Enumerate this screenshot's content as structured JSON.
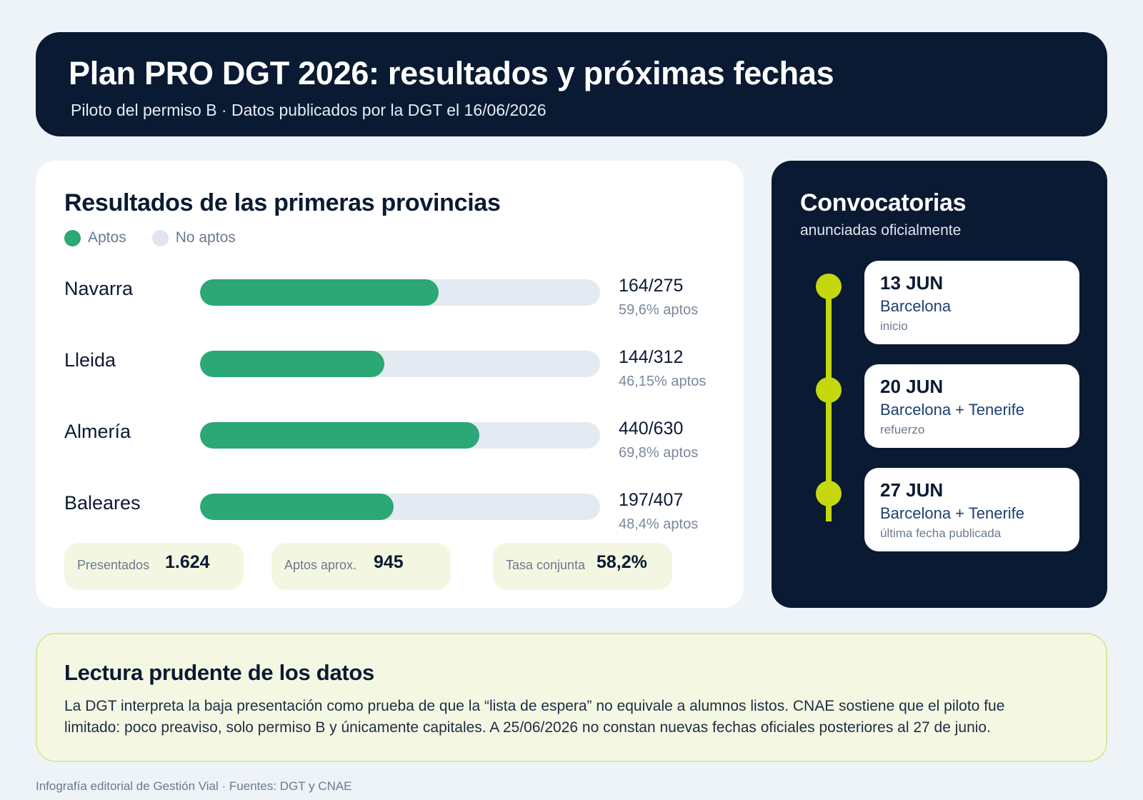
{
  "header": {
    "title": "Plan PRO DGT 2026: resultados y próximas fechas",
    "subtitle": "Piloto del permiso B · Datos publicados por la DGT el 16/06/2026"
  },
  "results": {
    "title": "Resultados de las primeras provincias",
    "legend": {
      "aptos": "Aptos",
      "no_aptos": "No aptos"
    },
    "stats": [
      {
        "label": "Presentados",
        "value": "1.624"
      },
      {
        "label": "Aptos aprox.",
        "value": "945"
      },
      {
        "label": "Tasa conjunta",
        "value": "58,2%"
      }
    ]
  },
  "chart_data": {
    "type": "bar",
    "orientation": "horizontal",
    "stacked": true,
    "title": "Resultados de las primeras provincias",
    "categories": [
      "Navarra",
      "Lleida",
      "Almería",
      "Baleares"
    ],
    "series": [
      {
        "name": "Aptos",
        "values": [
          164,
          144,
          440,
          197
        ],
        "color": "#2ca776"
      },
      {
        "name": "No aptos",
        "values": [
          111,
          168,
          190,
          210
        ],
        "color": "#e4eaf2"
      }
    ],
    "totals": [
      275,
      312,
      630,
      407
    ],
    "value_labels": [
      "164/275",
      "144/312",
      "440/630",
      "197/407"
    ],
    "pct_labels": [
      "59,6% aptos",
      "46,15% aptos",
      "69,8% aptos",
      "48,4% aptos"
    ],
    "legend": "top-left"
  },
  "convocatorias": {
    "title": "Convocatorias",
    "subtitle": "anunciadas oficialmente",
    "accent": "#c5d80d",
    "events": [
      {
        "date": "13 JUN",
        "place": "Barcelona",
        "note": "inicio"
      },
      {
        "date": "20 JUN",
        "place": "Barcelona + Tenerife",
        "note": "refuerzo"
      },
      {
        "date": "27 JUN",
        "place": "Barcelona + Tenerife",
        "note": "última fecha publicada"
      }
    ]
  },
  "note": {
    "title": "Lectura prudente de los datos",
    "text": "La DGT interpreta la baja presentación como prueba de que la “lista de espera” no equivale a alumnos listos. CNAE sostiene que el piloto fue limitado: poco preaviso, solo permiso B y únicamente capitales. A 25/06/2026 no constan nuevas fechas oficiales posteriores al 27 de junio."
  },
  "footer": "Infografía editorial de Gestión Vial · Fuentes: DGT y CNAE"
}
